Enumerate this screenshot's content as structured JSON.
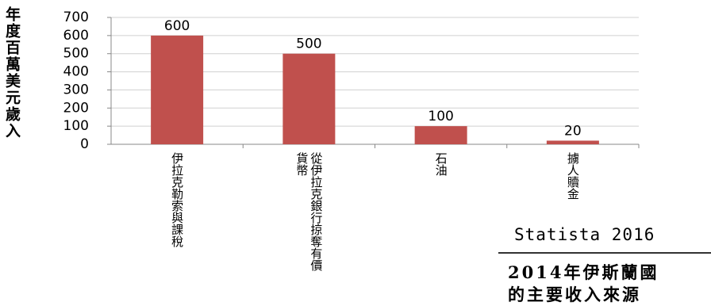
{
  "chart_data": {
    "type": "bar",
    "ylabel": "年度百萬美元歲入",
    "categories": [
      "伊拉克勒索與課稅",
      "從伊拉克銀行掠奪有價貨幣",
      "石油",
      "擄人贖金"
    ],
    "values": [
      600,
      500,
      100,
      20
    ],
    "color": "#c0504d",
    "ylim": [
      0,
      700
    ],
    "yticks": [
      0,
      100,
      200,
      300,
      400,
      500,
      600,
      700
    ],
    "grid": true,
    "source": "Statista 2016",
    "title": [
      "2014年伊斯蘭國",
      "的主要收入來源"
    ]
  }
}
